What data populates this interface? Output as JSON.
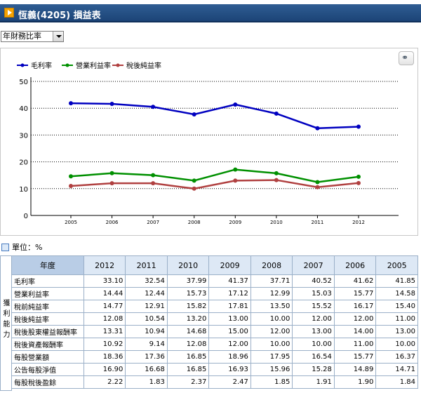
{
  "header": {
    "title": "恆義(4205) 損益表",
    "arrow_icon": "arrow-right-icon"
  },
  "selector": {
    "value": "年財務比率"
  },
  "toolbar": {
    "link_icon": "link-icon"
  },
  "unit_label": "單位：%",
  "side_label": "獲利能力",
  "chart_data": {
    "type": "line",
    "categories": [
      "2005",
      "2006",
      "2007",
      "2008",
      "2009",
      "2010",
      "2011",
      "2012"
    ],
    "ylim": [
      0,
      50
    ],
    "yticks": [
      0,
      10,
      20,
      30,
      40,
      50
    ],
    "grid": true,
    "legend_position": "top-left",
    "series": [
      {
        "name": "毛利率",
        "color": "#0000c0",
        "values": [
          41.85,
          41.62,
          40.52,
          37.71,
          41.37,
          37.99,
          32.54,
          33.1
        ]
      },
      {
        "name": "營業利益率",
        "color": "#009000",
        "values": [
          14.58,
          15.77,
          15.03,
          12.99,
          17.12,
          15.73,
          12.44,
          14.44
        ]
      },
      {
        "name": "稅後純益率",
        "color": "#b04040",
        "values": [
          11.0,
          12.0,
          12.0,
          10.0,
          13.0,
          13.2,
          10.54,
          12.08
        ]
      }
    ]
  },
  "table": {
    "corner": "年度",
    "years": [
      "2012",
      "2011",
      "2010",
      "2009",
      "2008",
      "2007",
      "2006",
      "2005"
    ],
    "rows": [
      {
        "label": "毛利率",
        "values": [
          "33.10",
          "32.54",
          "37.99",
          "41.37",
          "37.71",
          "40.52",
          "41.62",
          "41.85"
        ]
      },
      {
        "label": "營業利益率",
        "values": [
          "14.44",
          "12.44",
          "15.73",
          "17.12",
          "12.99",
          "15.03",
          "15.77",
          "14.58"
        ]
      },
      {
        "label": "稅前純益率",
        "values": [
          "14.77",
          "12.91",
          "15.82",
          "17.81",
          "13.50",
          "15.52",
          "16.17",
          "15.40"
        ]
      },
      {
        "label": "稅後純益率",
        "values": [
          "12.08",
          "10.54",
          "13.20",
          "13.00",
          "10.00",
          "12.00",
          "12.00",
          "11.00"
        ]
      },
      {
        "label": "稅後股東權益報酬率",
        "values": [
          "13.31",
          "10.94",
          "14.68",
          "15.00",
          "12.00",
          "13.00",
          "14.00",
          "13.00"
        ]
      },
      {
        "label": "稅後資產報酬率",
        "values": [
          "10.92",
          "9.14",
          "12.08",
          "12.00",
          "10.00",
          "10.00",
          "11.00",
          "10.00"
        ]
      },
      {
        "label": "每股營業額",
        "values": [
          "18.36",
          "17.36",
          "16.85",
          "18.96",
          "17.95",
          "16.54",
          "15.77",
          "16.37"
        ]
      },
      {
        "label": "公告每股淨值",
        "values": [
          "16.90",
          "16.68",
          "16.85",
          "16.93",
          "15.96",
          "15.28",
          "14.89",
          "14.71"
        ]
      },
      {
        "label": "每股稅後盈餘",
        "values": [
          "2.22",
          "1.83",
          "2.37",
          "2.47",
          "1.85",
          "1.91",
          "1.90",
          "1.84"
        ]
      }
    ]
  }
}
